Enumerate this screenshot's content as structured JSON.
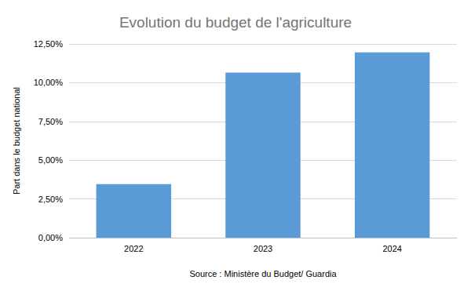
{
  "chart_data": {
    "type": "bar",
    "title": "Evolution du budget de l'agriculture",
    "xlabel": "Source : Ministère du Budget/ Guardia",
    "ylabel": "Part dans le budget national",
    "categories": [
      "2022",
      "2023",
      "2024"
    ],
    "values": [
      3.45,
      10.65,
      11.95
    ],
    "color": "#5b9bd5",
    "ylim": [
      0,
      12.5
    ],
    "yticks": [
      {
        "value": 0,
        "label": "0,00%"
      },
      {
        "value": 2.5,
        "label": "2,50%"
      },
      {
        "value": 5,
        "label": "5,00%"
      },
      {
        "value": 7.5,
        "label": "7,50%"
      },
      {
        "value": 10,
        "label": "10,00%"
      },
      {
        "value": 12.5,
        "label": "12,50%"
      }
    ],
    "grid": true
  }
}
